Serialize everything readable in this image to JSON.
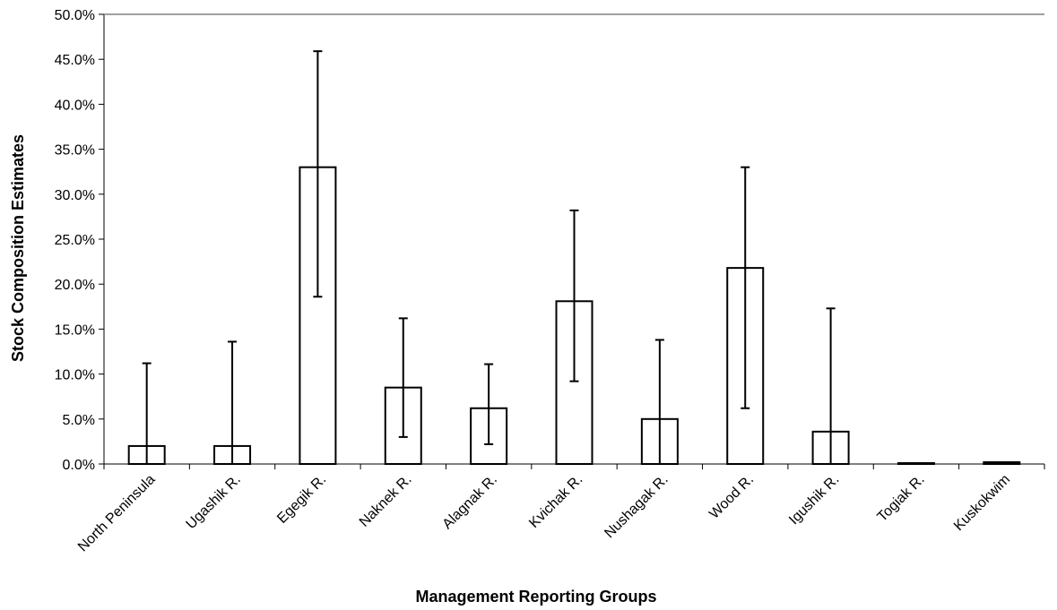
{
  "chart_data": {
    "type": "bar",
    "title": "",
    "xlabel": "Management Reporting Groups",
    "ylabel": "Stock Composition Estimates",
    "ylim": [
      0,
      0.5
    ],
    "y_ticks": [
      0,
      0.05,
      0.1,
      0.15,
      0.2,
      0.25,
      0.3,
      0.35,
      0.4,
      0.45,
      0.5
    ],
    "y_tick_labels": [
      "0.0%",
      "5.0%",
      "10.0%",
      "15.0%",
      "20.0%",
      "25.0%",
      "30.0%",
      "35.0%",
      "40.0%",
      "45.0%",
      "50.0%"
    ],
    "categories": [
      "North Peninsula",
      "Ugashik R.",
      "Egegik R.",
      "Naknek R.",
      "Alagnak R.",
      "Kvichak R.",
      "Nushagak R.",
      "Wood R.",
      "Igushik R.",
      "Togiak R.",
      "Kuskokwim"
    ],
    "values": [
      0.02,
      0.02,
      0.33,
      0.085,
      0.062,
      0.181,
      0.05,
      0.218,
      0.036,
      0.001,
      0.002
    ],
    "error_lower": [
      0.0,
      0.0,
      0.186,
      0.03,
      0.022,
      0.092,
      0.0,
      0.062,
      0.0,
      0.0,
      0.0
    ],
    "error_upper": [
      0.112,
      0.136,
      0.459,
      0.162,
      0.111,
      0.282,
      0.138,
      0.33,
      0.173,
      0.0,
      0.0
    ],
    "grid": false,
    "legend": "none",
    "bar_fill": "#ffffff",
    "bar_stroke": "#000000"
  }
}
